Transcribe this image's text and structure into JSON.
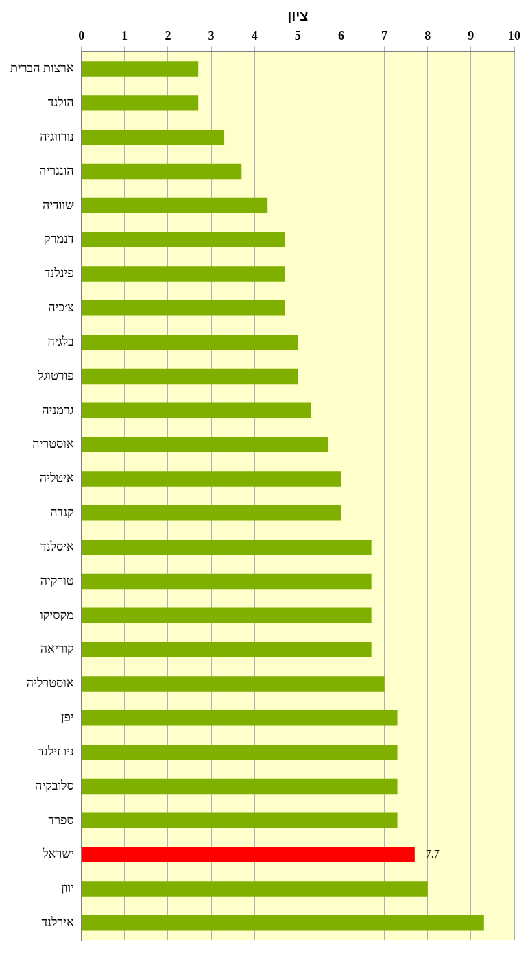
{
  "chart_data": {
    "type": "bar",
    "orientation": "horizontal",
    "xlabel": "ציון",
    "categories": [
      "ארצות הברית",
      "הולנד",
      "נורווגיה",
      "הונגריה",
      "שוודיה",
      "דנמרק",
      "פינלנד",
      "צ׳כיה",
      "בלגיה",
      "פורטוגל",
      "גרמניה",
      "אוסטריה",
      "איטליה",
      "קנדה",
      "איסלנד",
      "טורקיה",
      "מקסיקו",
      "קוריאה",
      "אוסטרליה",
      "יפן",
      "ניו זילנד",
      "סלובקיה",
      "ספרד",
      "ישראל",
      "יוון",
      "אירלנד"
    ],
    "values": [
      2.7,
      2.7,
      3.3,
      3.7,
      4.3,
      4.7,
      4.7,
      4.7,
      5.0,
      5.0,
      5.3,
      5.7,
      6.0,
      6.0,
      6.7,
      6.7,
      6.7,
      6.7,
      7.0,
      7.3,
      7.3,
      7.3,
      7.3,
      7.7,
      8.0,
      9.3
    ],
    "colors": [
      "#7fb000",
      "#7fb000",
      "#7fb000",
      "#7fb000",
      "#7fb000",
      "#7fb000",
      "#7fb000",
      "#7fb000",
      "#7fb000",
      "#7fb000",
      "#7fb000",
      "#7fb000",
      "#7fb000",
      "#7fb000",
      "#7fb000",
      "#7fb000",
      "#7fb000",
      "#7fb000",
      "#7fb000",
      "#7fb000",
      "#7fb000",
      "#7fb000",
      "#7fb000",
      "#ff0000",
      "#7fb000",
      "#7fb000"
    ],
    "value_labels": [
      null,
      null,
      null,
      null,
      null,
      null,
      null,
      null,
      null,
      null,
      null,
      null,
      null,
      null,
      null,
      null,
      null,
      null,
      null,
      null,
      null,
      null,
      null,
      "7.7",
      null,
      null
    ],
    "xlim": [
      0,
      10
    ],
    "xticks": [
      0,
      1,
      2,
      3,
      4,
      5,
      6,
      7,
      8,
      9,
      10
    ],
    "grid": "x",
    "legend": false
  }
}
